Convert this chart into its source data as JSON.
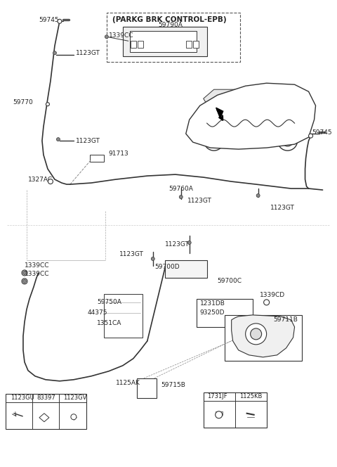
{
  "title": "(PARKG BRK CONTROL-EPB)",
  "bg_color": "#ffffff",
  "line_color": "#333333",
  "text_color": "#222222",
  "fig_width": 4.8,
  "fig_height": 6.64,
  "dpi": 100,
  "parts": {
    "top_section": {
      "label_59745_left": "59745",
      "label_59770": "59770",
      "label_1123GT_1": "1123GT",
      "label_1123GT_2": "1123GT",
      "label_91713": "91713",
      "label_1327AC": "1327AC",
      "label_59760A": "59760A",
      "label_1123GT_3": "1123GT",
      "label_1123GT_4": "1123GT",
      "label_59745_right": "59745",
      "label_1339CC": "1339CC",
      "label_59790A": "59790A"
    },
    "bottom_section": {
      "label_1123GT_a": "1123GT",
      "label_1123GT_b": "1123GT",
      "label_1339CC_a": "1339CC",
      "label_1339CC_b": "1339CC",
      "label_59700D": "59700D",
      "label_59700C": "59700C",
      "label_59750A": "59750A",
      "label_44375": "44375",
      "label_1351CA": "1351CA",
      "label_1231DB": "1231DB",
      "label_93250D": "93250D",
      "label_1339CD": "1339CD",
      "label_59711B": "59711B",
      "label_1125AK": "1125AK",
      "label_59715B": "59715B"
    },
    "legend_left": {
      "1123GU": "1123GU",
      "83397": "83397",
      "1123GV": "1123GV"
    },
    "legend_right": {
      "1731JF": "1731JF",
      "1125KB": "1125KB"
    }
  }
}
